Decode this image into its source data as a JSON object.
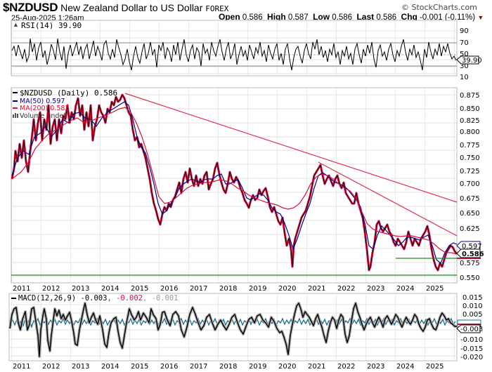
{
  "header": {
    "symbol": "$NZDUSD",
    "name": "New Zealand Dollar to US Dollar",
    "exchange": "FOREX",
    "datetime": "25-Aug-2025 1:26am",
    "credit": "© StockCharts.com",
    "open_label": "Open",
    "open": "0.586",
    "high_label": "High",
    "high": "0.587",
    "low_label": "Low",
    "low": "0.586",
    "last_label": "Last",
    "last": "0.586",
    "chg_label": "Chg",
    "chg": "-0.001 (-0.11%)",
    "chg_icon": "down-triangle-icon"
  },
  "rsi_panel": {
    "legend": "RSI(14) 39.90",
    "ticks": [
      "90",
      "70",
      "50",
      "30",
      "10"
    ],
    "current_tag": "39.90"
  },
  "price_panel": {
    "legend": {
      "price": "$NZDUSD (Daily) 0.586",
      "ma50": "MA(50) 0.597",
      "ma200": "MA(200) 0.583",
      "volume": "Volume undef"
    },
    "ticks": [
      "0.875",
      "0.850",
      "0.825",
      "0.800",
      "0.775",
      "0.750",
      "0.725",
      "0.700",
      "0.675",
      "0.650",
      "0.625",
      "0.575",
      "0.550"
    ],
    "tag_ma50": "0.597",
    "tag_last": "0.586"
  },
  "macd_panel": {
    "legend_main": "MACD(12,26,9) -0.003",
    "legend_signal": ", -0.002",
    "legend_hist": ", -0.001",
    "ticks": [
      "0.015",
      "0.010",
      "0.005",
      "-0.010",
      "-0.015",
      "-0.020"
    ],
    "current_tag": "-0.003"
  },
  "x_axis": {
    "years": [
      "2011",
      "2012",
      "2013",
      "2014",
      "2015",
      "2016",
      "2017",
      "2018",
      "2019",
      "2020",
      "2021",
      "2022",
      "2023",
      "2024",
      "2025"
    ]
  },
  "colors": {
    "price": "#000000",
    "price_band": "#d4103c",
    "ma50": "#00008b",
    "ma200": "#d4103c",
    "trendline": "#e0304a",
    "support": "#1a8a1a",
    "macd_hist": "#1f6f8f"
  },
  "chart_data": [
    {
      "type": "line",
      "title": "$NZDUSD New Zealand Dollar to US Dollar FOREX (Daily)",
      "xlabel": "",
      "ylabel": "",
      "x": [
        "2011",
        "2012",
        "2013",
        "2014",
        "2015",
        "2016",
        "2017",
        "2018",
        "2019",
        "2020",
        "2021",
        "2022",
        "2023",
        "2024",
        "2025"
      ],
      "ylim": [
        0.545,
        0.885
      ],
      "series": [
        {
          "name": "$NZDUSD (Daily)",
          "last": 0.586,
          "values": [
            0.75,
            0.8,
            0.82,
            0.86,
            0.73,
            0.66,
            0.72,
            0.71,
            0.67,
            0.64,
            0.71,
            0.66,
            0.61,
            0.6,
            0.586
          ]
        },
        {
          "name": "MA(50)",
          "last": 0.597
        },
        {
          "name": "MA(200)",
          "last": 0.583
        }
      ],
      "annotations": [
        "Downtrend line from 2014 high (~0.88) through 2021 high (~0.74) extending to ~0.665 at 2025",
        "Downtrend line from 2021 high through 2023/2024 highs to ~0.615",
        "Support line ~0.552 (2022-2025 lows)",
        "Support line ~0.580 (2023-2025)"
      ],
      "grid": true
    },
    {
      "type": "line",
      "title": "RSI(14)",
      "last": 39.9,
      "ylim": [
        0,
        100
      ],
      "reference_lines": [
        70,
        50,
        30
      ]
    },
    {
      "type": "line",
      "title": "MACD(12,26,9)",
      "series": [
        {
          "name": "MACD",
          "last": -0.003
        },
        {
          "name": "Signal",
          "last": -0.002
        },
        {
          "name": "Histogram",
          "last": -0.001
        }
      ],
      "ylim": [
        -0.022,
        0.017
      ]
    }
  ]
}
